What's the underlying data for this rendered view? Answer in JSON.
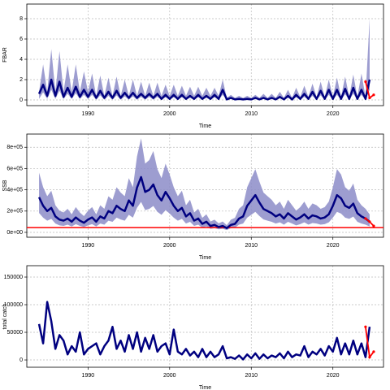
{
  "chart_data": [
    {
      "type": "line",
      "y_label": "FBAR",
      "x_label": "Time",
      "x": [
        1984,
        1984.5,
        1985,
        1985.5,
        1986,
        1986.5,
        1987,
        1987.5,
        1988,
        1988.5,
        1989,
        1989.5,
        1990,
        1990.5,
        1991,
        1991.5,
        1992,
        1992.5,
        1993,
        1993.5,
        1994,
        1994.5,
        1995,
        1995.5,
        1996,
        1996.5,
        1997,
        1997.5,
        1998,
        1998.5,
        1999,
        1999.5,
        2000,
        2000.5,
        2001,
        2001.5,
        2002,
        2002.5,
        2003,
        2003.5,
        2004,
        2004.5,
        2005,
        2005.5,
        2006,
        2006.5,
        2007,
        2007.5,
        2008,
        2008.5,
        2009,
        2009.5,
        2010,
        2010.5,
        2011,
        2011.5,
        2012,
        2012.5,
        2013,
        2013.5,
        2014,
        2014.5,
        2015,
        2015.5,
        2016,
        2016.5,
        2017,
        2017.5,
        2018,
        2018.5,
        2019,
        2019.5,
        2020,
        2020.5,
        2021,
        2021.5,
        2022,
        2022.5,
        2023,
        2023.5,
        2024,
        2024.5
      ],
      "xlim": [
        1982.5,
        2026.2
      ],
      "xticks": [
        1990,
        2000,
        2010,
        2020
      ],
      "ylim": [
        -0.56,
        9.44
      ],
      "yticks": [
        0,
        2,
        4,
        6,
        8
      ],
      "grid": true,
      "median": {
        "color": "#000080",
        "values": [
          0.6,
          1.5,
          0.4,
          2.0,
          0.4,
          1.8,
          0.3,
          1.2,
          0.3,
          1.3,
          0.3,
          1.0,
          0.3,
          1.0,
          0.2,
          0.9,
          0.2,
          0.8,
          0.2,
          0.9,
          0.2,
          0.7,
          0.2,
          0.7,
          0.2,
          0.6,
          0.2,
          0.6,
          0.2,
          0.6,
          0.1,
          0.5,
          0.1,
          0.5,
          0.1,
          0.5,
          0.1,
          0.4,
          0.1,
          0.5,
          0.1,
          0.4,
          0.1,
          0.5,
          0.1,
          1.0,
          0.05,
          0.2,
          0.05,
          0.1,
          0.05,
          0.1,
          0.05,
          0.2,
          0.05,
          0.2,
          0.05,
          0.2,
          0.05,
          0.3,
          0.05,
          0.4,
          0.05,
          0.5,
          0.1,
          0.6,
          0.1,
          0.8,
          0.1,
          0.9,
          0.1,
          1.0,
          0.1,
          1.0,
          0.1,
          1.1,
          0.1,
          1.2,
          0.1,
          1.0,
          0.1,
          2.0
        ]
      },
      "band": {
        "color": "#8c8cc8",
        "upper": [
          0.8,
          3.5,
          0.8,
          5,
          0.8,
          4.8,
          0.8,
          3.5,
          0.8,
          3.5,
          0.8,
          2.8,
          0.8,
          2.6,
          0.4,
          2.4,
          0.4,
          2.2,
          0.4,
          2.3,
          0.4,
          2.0,
          0.4,
          2.0,
          0.4,
          1.8,
          0.4,
          1.7,
          0.4,
          1.7,
          0.4,
          1.5,
          0.4,
          1.5,
          0.4,
          1.4,
          0.4,
          1.3,
          0.4,
          1.3,
          0.4,
          1.2,
          0.4,
          1.2,
          0.4,
          2.0,
          0.2,
          0.5,
          0.2,
          0.4,
          0.2,
          0.4,
          0.2,
          0.5,
          0.2,
          0.6,
          0.2,
          0.6,
          0.2,
          0.8,
          0.2,
          1.0,
          0.2,
          1.2,
          0.3,
          1.4,
          0.3,
          1.6,
          0.3,
          1.8,
          0.3,
          2.0,
          0.3,
          2.2,
          0.3,
          2.3,
          0.3,
          2.5,
          0.3,
          2.6,
          0.3,
          8.0
        ],
        "lower": [
          0.1,
          0.75,
          0.1,
          1.0,
          0.1,
          0.9,
          0.1,
          0.6,
          0.1,
          0.65,
          0.1,
          0.5,
          0.1,
          0.5,
          0.02,
          0.45,
          0.02,
          0.4,
          0.02,
          0.45,
          0.02,
          0.35,
          0.02,
          0.35,
          0.02,
          0.3,
          0.02,
          0.3,
          0.02,
          0.3,
          0.02,
          0.25,
          0.02,
          0.25,
          0.02,
          0.25,
          0.02,
          0.2,
          0.02,
          0.25,
          0.02,
          0.2,
          0.02,
          0.25,
          0.02,
          0.5,
          0.02,
          0.1,
          0.02,
          0.05,
          0.02,
          0.05,
          0.02,
          0.1,
          0.02,
          0.1,
          0.02,
          0.1,
          0.02,
          0.15,
          0.02,
          0.2,
          0.02,
          0.25,
          0.02,
          0.3,
          0.02,
          0.4,
          0.02,
          0.45,
          0.02,
          0.5,
          0.02,
          0.5,
          0.02,
          0.55,
          0.02,
          0.6,
          0.02,
          0.5,
          0.02,
          1.0
        ]
      },
      "forecast": {
        "color": "#ff0000",
        "x": [
          2024,
          2024.5,
          2025
        ],
        "values": [
          1.8,
          0.2,
          0.5
        ]
      }
    },
    {
      "type": "line",
      "y_label": "SSB",
      "x_label": "Time",
      "x": [
        1984,
        1984.5,
        1985,
        1985.5,
        1986,
        1986.5,
        1987,
        1987.5,
        1988,
        1988.5,
        1989,
        1989.5,
        1990,
        1990.5,
        1991,
        1991.5,
        1992,
        1992.5,
        1993,
        1993.5,
        1994,
        1994.5,
        1995,
        1995.5,
        1996,
        1996.5,
        1997,
        1997.5,
        1998,
        1998.5,
        1999,
        1999.5,
        2000,
        2000.5,
        2001,
        2001.5,
        2002,
        2002.5,
        2003,
        2003.5,
        2004,
        2004.5,
        2005,
        2005.5,
        2006,
        2006.5,
        2007,
        2007.5,
        2008,
        2008.5,
        2009,
        2009.5,
        2010,
        2010.5,
        2011,
        2011.5,
        2012,
        2012.5,
        2013,
        2013.5,
        2014,
        2014.5,
        2015,
        2015.5,
        2016,
        2016.5,
        2017,
        2017.5,
        2018,
        2018.5,
        2019,
        2019.5,
        2020,
        2020.5,
        2021,
        2021.5,
        2022,
        2022.5,
        2023,
        2023.5,
        2024,
        2024.5
      ],
      "xlim": [
        1982.5,
        2026.2
      ],
      "xticks": [
        1990,
        2000,
        2010,
        2020
      ],
      "ylim": [
        -46000,
        924000
      ],
      "yticks": [
        {
          "value": 0,
          "label": "0e+00"
        },
        {
          "value": 200000,
          "label": "2e+05"
        },
        {
          "value": 400000,
          "label": "4e+05"
        },
        {
          "value": 600000,
          "label": "6e+05"
        },
        {
          "value": 800000,
          "label": "8e+05"
        }
      ],
      "grid": true,
      "median": {
        "color": "#000080",
        "values": [
          330000,
          250000,
          200000,
          230000,
          150000,
          120000,
          110000,
          130000,
          100000,
          140000,
          110000,
          90000,
          120000,
          140000,
          100000,
          150000,
          130000,
          200000,
          180000,
          250000,
          220000,
          200000,
          300000,
          250000,
          420000,
          520000,
          380000,
          400000,
          450000,
          350000,
          300000,
          380000,
          320000,
          250000,
          200000,
          230000,
          150000,
          180000,
          110000,
          130000,
          80000,
          100000,
          60000,
          70000,
          50000,
          60000,
          40000,
          70000,
          80000,
          130000,
          150000,
          250000,
          300000,
          350000,
          280000,
          220000,
          200000,
          180000,
          150000,
          170000,
          130000,
          180000,
          150000,
          120000,
          140000,
          170000,
          130000,
          160000,
          150000,
          130000,
          140000,
          170000,
          250000,
          350000,
          320000,
          250000,
          230000,
          270000,
          180000,
          150000,
          130000,
          100000
        ]
      },
      "band": {
        "color": "#8c8cc8",
        "upper": [
          561000,
          425000,
          340000,
          391000,
          255000,
          204000,
          187000,
          221000,
          170000,
          238000,
          187000,
          153000,
          204000,
          238000,
          170000,
          255000,
          221000,
          340000,
          306000,
          425000,
          374000,
          340000,
          510000,
          425000,
          714000,
          884000,
          646000,
          680000,
          765000,
          595000,
          510000,
          646000,
          544000,
          425000,
          340000,
          391000,
          255000,
          306000,
          187000,
          221000,
          136000,
          170000,
          102000,
          119000,
          85000,
          102000,
          68000,
          119000,
          136000,
          221000,
          255000,
          425000,
          510000,
          595000,
          476000,
          374000,
          340000,
          306000,
          255000,
          289000,
          221000,
          306000,
          255000,
          204000,
          238000,
          289000,
          221000,
          272000,
          255000,
          221000,
          238000,
          289000,
          425000,
          595000,
          544000,
          425000,
          391000,
          459000,
          306000,
          255000,
          221000,
          170000
        ],
        "lower": [
          182000,
          138000,
          110000,
          127000,
          83000,
          66000,
          61000,
          72000,
          55000,
          77000,
          61000,
          50000,
          66000,
          77000,
          55000,
          83000,
          72000,
          110000,
          99000,
          138000,
          121000,
          110000,
          165000,
          138000,
          231000,
          286000,
          209000,
          220000,
          248000,
          193000,
          165000,
          209000,
          176000,
          138000,
          110000,
          127000,
          83000,
          99000,
          61000,
          72000,
          44000,
          55000,
          33000,
          39000,
          28000,
          33000,
          22000,
          39000,
          44000,
          72000,
          83000,
          138000,
          165000,
          193000,
          154000,
          121000,
          110000,
          99000,
          83000,
          94000,
          72000,
          99000,
          83000,
          66000,
          77000,
          94000,
          72000,
          88000,
          83000,
          72000,
          77000,
          94000,
          138000,
          193000,
          176000,
          138000,
          127000,
          149000,
          99000,
          83000,
          72000,
          55000
        ]
      },
      "forecast": {
        "color": "#ff0000",
        "x": [
          2024,
          2024.5,
          2025
        ],
        "values": [
          130000,
          100000,
          60000
        ]
      },
      "reference_line": {
        "color": "#ff0000",
        "value": 45000
      }
    },
    {
      "type": "line",
      "y_label": "total catch",
      "x_label": "Time",
      "x": [
        1984,
        1984.5,
        1985,
        1985.5,
        1986,
        1986.5,
        1987,
        1987.5,
        1988,
        1988.5,
        1989,
        1989.5,
        1990,
        1990.5,
        1991,
        1991.5,
        1992,
        1992.5,
        1993,
        1993.5,
        1994,
        1994.5,
        1995,
        1995.5,
        1996,
        1996.5,
        1997,
        1997.5,
        1998,
        1998.5,
        1999,
        1999.5,
        2000,
        2000.5,
        2001,
        2001.5,
        2002,
        2002.5,
        2003,
        2003.5,
        2004,
        2004.5,
        2005,
        2005.5,
        2006,
        2006.5,
        2007,
        2007.5,
        2008,
        2008.5,
        2009,
        2009.5,
        2010,
        2010.5,
        2011,
        2011.5,
        2012,
        2012.5,
        2013,
        2013.5,
        2014,
        2014.5,
        2015,
        2015.5,
        2016,
        2016.5,
        2017,
        2017.5,
        2018,
        2018.5,
        2019,
        2019.5,
        2020,
        2020.5,
        2021,
        2021.5,
        2022,
        2022.5,
        2023,
        2023.5,
        2024,
        2024.5
      ],
      "xlim": [
        1982.5,
        2026.2
      ],
      "xticks": [
        1990,
        2000,
        2010,
        2020
      ],
      "ylim": [
        -13200,
        170600
      ],
      "yticks": [
        0,
        50000,
        100000,
        150000
      ],
      "grid": true,
      "median": {
        "color": "#000080",
        "values": [
          65000,
          30000,
          105000,
          70000,
          20000,
          45000,
          35000,
          10000,
          25000,
          15000,
          50000,
          10000,
          20000,
          25000,
          30000,
          10000,
          25000,
          35000,
          60000,
          20000,
          35000,
          15000,
          45000,
          20000,
          50000,
          15000,
          40000,
          20000,
          45000,
          15000,
          25000,
          30000,
          10000,
          55000,
          15000,
          10000,
          20000,
          8000,
          15000,
          5000,
          20000,
          5000,
          15000,
          5000,
          10000,
          25000,
          3000,
          5000,
          2000,
          8000,
          1000,
          10000,
          3000,
          12000,
          2000,
          10000,
          3000,
          8000,
          5000,
          12000,
          3000,
          15000,
          5000,
          10000,
          8000,
          25000,
          5000,
          15000,
          10000,
          20000,
          8000,
          25000,
          15000,
          40000,
          10000,
          30000,
          10000,
          35000,
          10000,
          30000,
          5000,
          60000
        ]
      },
      "forecast": {
        "color": "#ff0000",
        "x": [
          2024,
          2024.5,
          2025
        ],
        "values": [
          60000,
          5000,
          15000
        ]
      }
    }
  ]
}
